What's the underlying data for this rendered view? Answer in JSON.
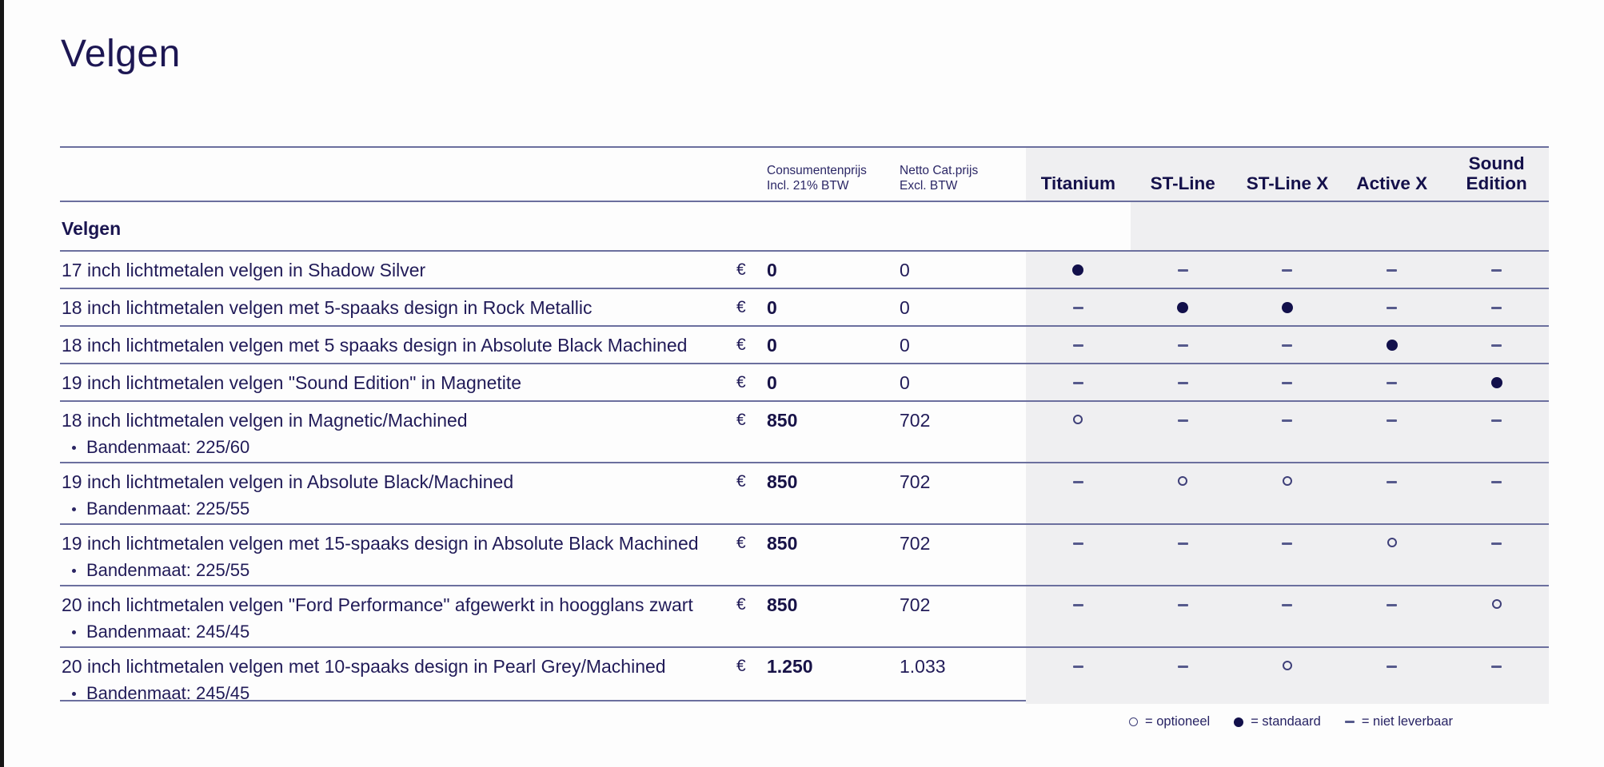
{
  "page": {
    "title": "Velgen"
  },
  "table": {
    "section_header": "Velgen",
    "currency_symbol": "€",
    "col_consumer_price": {
      "line1": "Consumentenprijs",
      "line2": "Incl. 21% BTW"
    },
    "col_net_price": {
      "line1": "Netto Cat.prijs",
      "line2": "Excl. BTW"
    },
    "trim_columns": [
      "Titanium",
      "ST-Line",
      "ST-Line X",
      "Active X",
      "Sound Edition"
    ],
    "rows": [
      {
        "name": "17 inch lichtmetalen velgen in Shadow Silver",
        "sub": "",
        "price": "0",
        "netto": "0",
        "availability": [
          "standard",
          "na",
          "na",
          "na",
          "na"
        ]
      },
      {
        "name": "18 inch lichtmetalen velgen met 5-spaaks design in Rock Metallic",
        "sub": "",
        "price": "0",
        "netto": "0",
        "availability": [
          "na",
          "standard",
          "standard",
          "na",
          "na"
        ]
      },
      {
        "name": "18 inch lichtmetalen velgen met 5 spaaks design in Absolute Black Machined",
        "sub": "",
        "price": "0",
        "netto": "0",
        "availability": [
          "na",
          "na",
          "na",
          "standard",
          "na"
        ]
      },
      {
        "name": "19 inch lichtmetalen velgen \"Sound Edition\" in Magnetite",
        "sub": "",
        "price": "0",
        "netto": "0",
        "availability": [
          "na",
          "na",
          "na",
          "na",
          "standard"
        ]
      },
      {
        "name": "18 inch lichtmetalen velgen in Magnetic/Machined",
        "sub": "Bandenmaat: 225/60",
        "price": "850",
        "netto": "702",
        "availability": [
          "optional",
          "na",
          "na",
          "na",
          "na"
        ]
      },
      {
        "name": "19 inch lichtmetalen velgen in Absolute Black/Machined",
        "sub": "Bandenmaat: 225/55",
        "price": "850",
        "netto": "702",
        "availability": [
          "na",
          "optional",
          "optional",
          "na",
          "na"
        ]
      },
      {
        "name": "19 inch lichtmetalen velgen met 15-spaaks design in Absolute Black Machined",
        "sub": "Bandenmaat: 225/55",
        "price": "850",
        "netto": "702",
        "availability": [
          "na",
          "na",
          "na",
          "optional",
          "na"
        ]
      },
      {
        "name": "20 inch lichtmetalen velgen \"Ford Performance\" afgewerkt in hoogglans zwart",
        "sub": "Bandenmaat: 245/45",
        "price": "850",
        "netto": "702",
        "availability": [
          "na",
          "na",
          "na",
          "na",
          "optional"
        ]
      },
      {
        "name": "20 inch lichtmetalen velgen met 10-spaaks design in Pearl Grey/Machined",
        "sub": "Bandenmaat: 245/45",
        "price": "1.250",
        "netto": "1.033",
        "availability": [
          "na",
          "na",
          "optional",
          "na",
          "na"
        ]
      }
    ],
    "legend": [
      {
        "mark": "optional",
        "label": "= optioneel"
      },
      {
        "mark": "standard",
        "label": "= standaard"
      },
      {
        "mark": "na",
        "label": "= niet leverbaar"
      }
    ]
  },
  "colors": {
    "text_navy": "#211b58",
    "heading_navy": "#1d1753",
    "row_line": "#6b6f9e",
    "band_gray": "#efeff1",
    "page_edge": "#161616"
  }
}
